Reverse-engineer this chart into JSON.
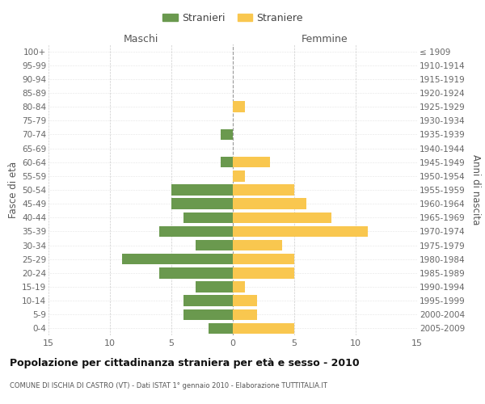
{
  "age_groups": [
    "0-4",
    "5-9",
    "10-14",
    "15-19",
    "20-24",
    "25-29",
    "30-34",
    "35-39",
    "40-44",
    "45-49",
    "50-54",
    "55-59",
    "60-64",
    "65-69",
    "70-74",
    "75-79",
    "80-84",
    "85-89",
    "90-94",
    "95-99",
    "100+"
  ],
  "birth_years": [
    "2005-2009",
    "2000-2004",
    "1995-1999",
    "1990-1994",
    "1985-1989",
    "1980-1984",
    "1975-1979",
    "1970-1974",
    "1965-1969",
    "1960-1964",
    "1955-1959",
    "1950-1954",
    "1945-1949",
    "1940-1944",
    "1935-1939",
    "1930-1934",
    "1925-1929",
    "1920-1924",
    "1915-1919",
    "1910-1914",
    "≤ 1909"
  ],
  "males": [
    2,
    4,
    4,
    3,
    6,
    9,
    3,
    6,
    4,
    5,
    5,
    0,
    1,
    0,
    1,
    0,
    0,
    0,
    0,
    0,
    0
  ],
  "females": [
    5,
    2,
    2,
    1,
    5,
    5,
    4,
    11,
    8,
    6,
    5,
    1,
    3,
    0,
    0,
    0,
    1,
    0,
    0,
    0,
    0
  ],
  "male_color": "#6a994e",
  "female_color": "#f9c74f",
  "title": "Popolazione per cittadinanza straniera per età e sesso - 2010",
  "subtitle": "COMUNE DI ISCHIA DI CASTRO (VT) - Dati ISTAT 1° gennaio 2010 - Elaborazione TUTTITALIA.IT",
  "xlabel_left": "Maschi",
  "xlabel_right": "Femmine",
  "ylabel_left": "Fasce di età",
  "ylabel_right": "Anni di nascita",
  "legend_male": "Stranieri",
  "legend_female": "Straniere",
  "xlim": 15,
  "background_color": "#ffffff",
  "grid_color": "#cccccc"
}
